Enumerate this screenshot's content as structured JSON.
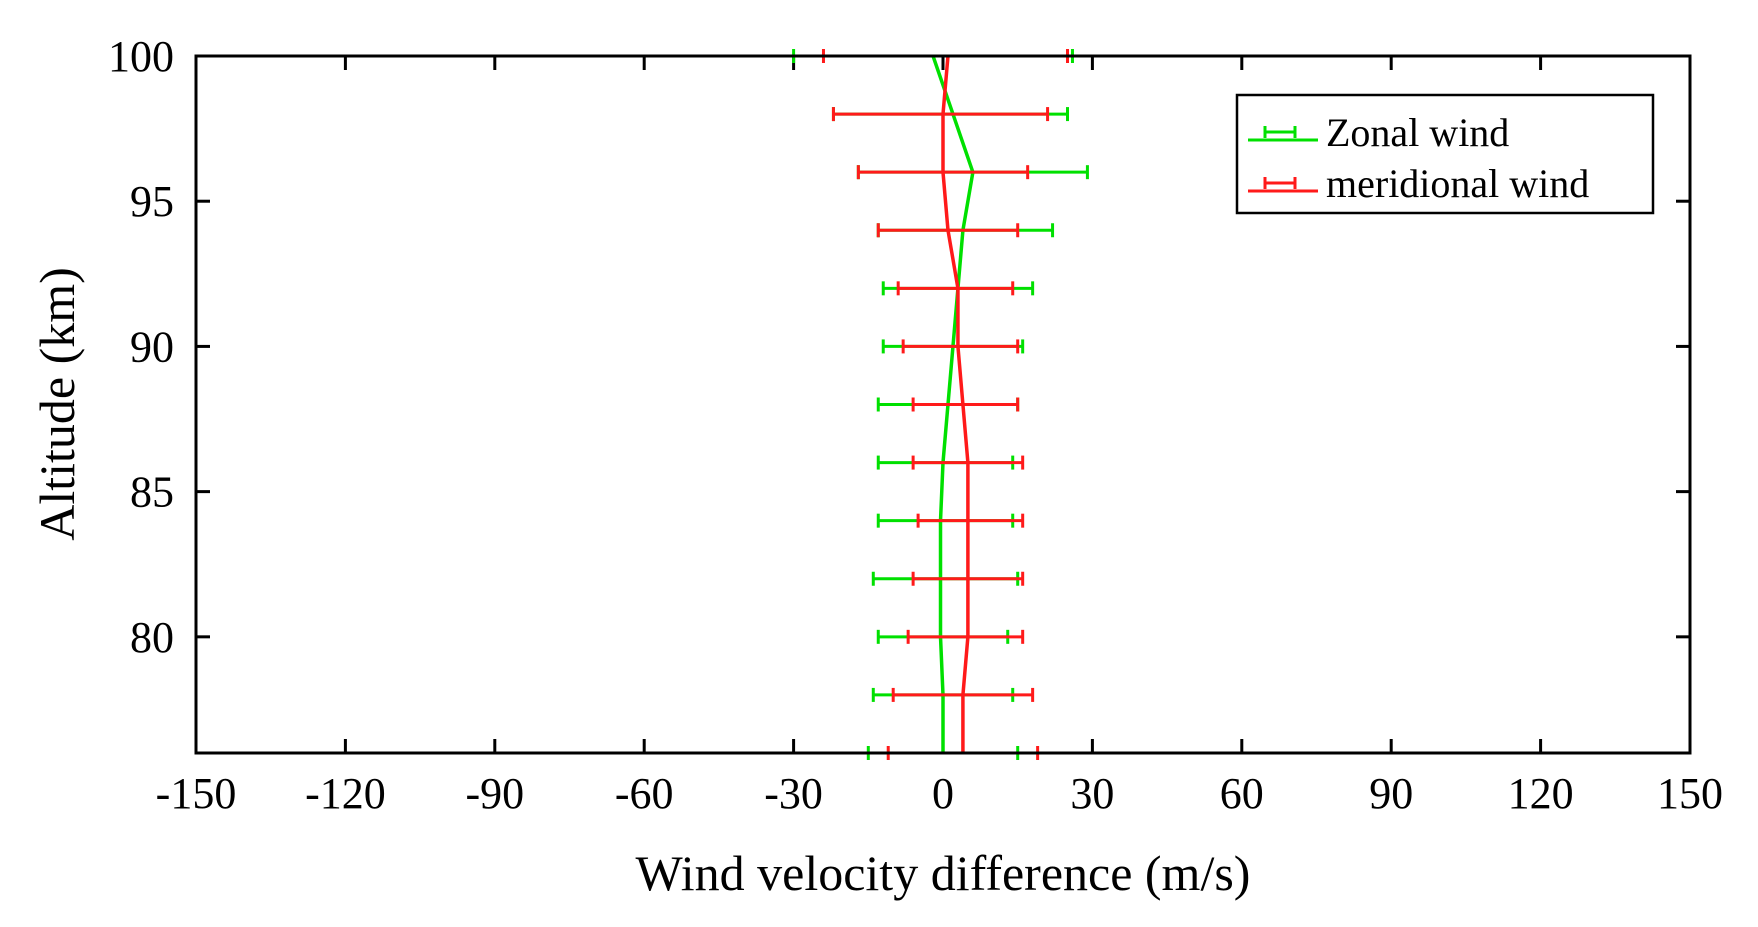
{
  "chart_data": {
    "type": "line",
    "title": "",
    "xlabel": "Wind velocity difference (m/s)",
    "ylabel": "Altitude (km)",
    "xlim": [
      -150,
      150
    ],
    "ylim": [
      76,
      100
    ],
    "xticks": [
      -150,
      -120,
      -90,
      -60,
      -30,
      0,
      30,
      60,
      90,
      120,
      150
    ],
    "xtick_labels": [
      "-150",
      "-120",
      "-90",
      "-60",
      "-30",
      "0",
      "30",
      "60",
      "90",
      "120",
      "150"
    ],
    "yticks": [
      80,
      85,
      90,
      95,
      100
    ],
    "ytick_labels": [
      "80",
      "85",
      "90",
      "95",
      "100"
    ],
    "grid": false,
    "legend_position": "top-right",
    "series": [
      {
        "name": "Zonal wind",
        "color": "#00e000",
        "altitude": [
          76,
          78,
          80,
          82,
          84,
          86,
          88,
          90,
          92,
          94,
          96,
          98,
          100
        ],
        "values": [
          0,
          0,
          -0.5,
          -0.5,
          -0.5,
          0,
          1,
          2,
          3,
          4,
          6,
          2,
          -2
        ],
        "lower": [
          -15,
          -14,
          -13,
          -14,
          -13,
          -13,
          -13,
          -12,
          -12,
          -13,
          -17,
          -22,
          -30
        ],
        "upper": [
          15,
          14,
          13,
          15,
          14,
          14,
          15,
          16,
          18,
          22,
          29,
          25,
          26
        ]
      },
      {
        "name": "meridional wind",
        "color": "#ff1a1a",
        "altitude": [
          76,
          78,
          80,
          82,
          84,
          86,
          88,
          90,
          92,
          94,
          96,
          98,
          100
        ],
        "values": [
          4,
          4,
          5,
          5,
          5,
          5,
          4,
          3,
          3,
          1,
          0,
          0,
          1
        ],
        "lower": [
          -11,
          -10,
          -7,
          -6,
          -5,
          -6,
          -6,
          -8,
          -9,
          -13,
          -17,
          -22,
          -24
        ],
        "upper": [
          19,
          18,
          16,
          16,
          16,
          16,
          15,
          15,
          14,
          15,
          17,
          21,
          25
        ]
      }
    ]
  }
}
